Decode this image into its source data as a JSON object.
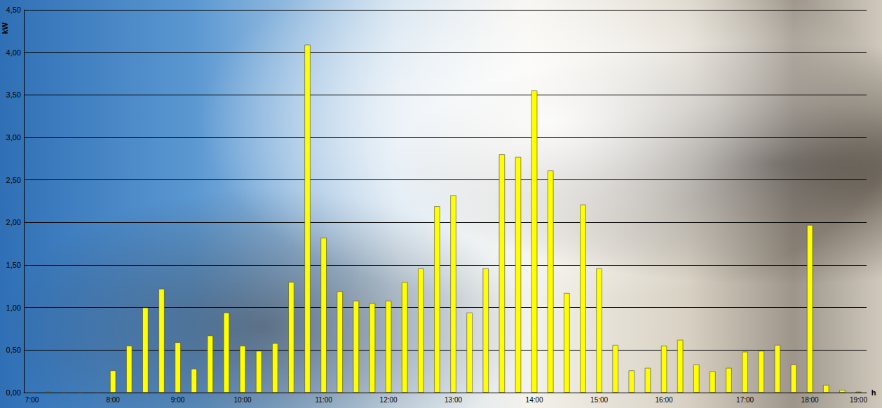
{
  "chart_data": {
    "type": "bar",
    "x_label": "h",
    "y_label": "kW",
    "categories": [
      "7:00",
      null,
      null,
      null,
      null,
      "8:00",
      null,
      null,
      null,
      "9:00",
      null,
      null,
      null,
      "10:00",
      null,
      null,
      null,
      null,
      "11:00",
      null,
      null,
      null,
      "12:00",
      null,
      null,
      null,
      "13:00",
      null,
      null,
      null,
      null,
      "14:00",
      null,
      null,
      null,
      "15:00",
      null,
      null,
      null,
      "16:00",
      null,
      null,
      null,
      null,
      "17:00",
      null,
      null,
      null,
      "18:00",
      null,
      null,
      "19:00"
    ],
    "values": [
      0.0,
      0.01,
      0,
      0,
      0,
      0.26,
      0.55,
      1.0,
      1.22,
      0.59,
      0.28,
      0.67,
      0.94,
      0.55,
      0.49,
      0.58,
      1.3,
      4.09,
      1.82,
      1.19,
      1.08,
      1.05,
      1.08,
      1.3,
      1.46,
      2.19,
      2.32,
      0.94,
      1.46,
      2.8,
      2.77,
      3.55,
      2.61,
      1.17,
      2.21,
      1.46,
      0.56,
      0.26,
      0.29,
      0.55,
      0.62,
      0.33,
      0.25,
      0.29,
      0.48,
      0.49,
      0.56,
      0.33,
      1.97,
      0.09,
      0.03,
      0.01
    ],
    "color": "#ffff00",
    "ylim": [
      0,
      4.5
    ],
    "yticks": [
      {
        "value": 0,
        "label": "0,00"
      },
      {
        "value": 0.5,
        "label": "0,50"
      },
      {
        "value": 1,
        "label": "1,00"
      },
      {
        "value": 1.5,
        "label": "1,50"
      },
      {
        "value": 2,
        "label": "2,00"
      },
      {
        "value": 2.5,
        "label": "2,50"
      },
      {
        "value": 3,
        "label": "3,00"
      },
      {
        "value": 3.5,
        "label": "3,50"
      },
      {
        "value": 4,
        "label": "4,00"
      },
      {
        "value": 4.5,
        "label": "4,50"
      }
    ],
    "grid": true
  }
}
